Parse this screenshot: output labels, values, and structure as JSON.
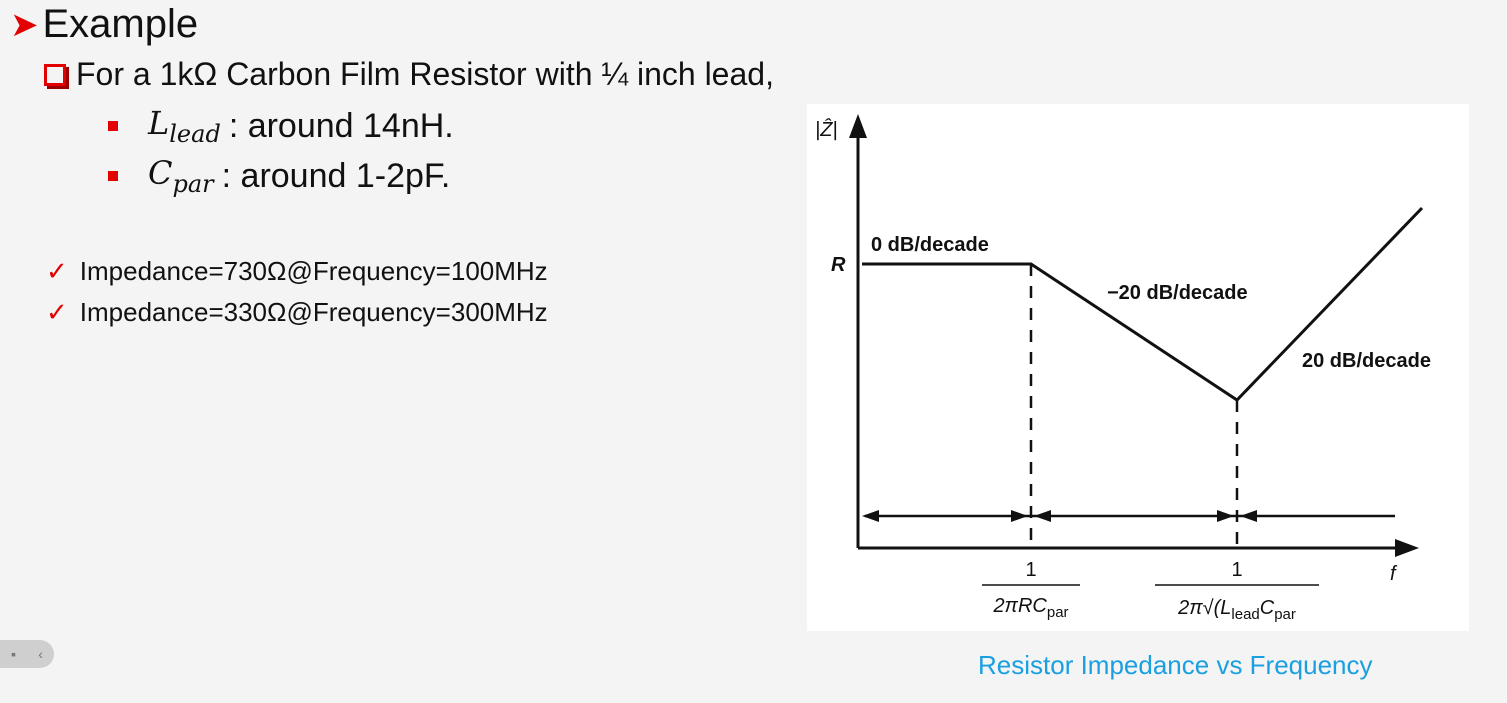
{
  "slide": {
    "heading": "Example",
    "subheading": "For a 1kΩ Carbon Film Resistor with ¼ inch lead,",
    "bullets": [
      {
        "symbol": "L",
        "sub": "lead",
        "text": ": around 14nH."
      },
      {
        "symbol": "C",
        "sub": "par",
        "text": ": around 1-2pF."
      }
    ],
    "checks": [
      "Impedance=730Ω@Frequency=100MHz",
      "Impedance=330Ω@Frequency=300MHz"
    ],
    "caption": "Resistor Impedance vs Frequency"
  },
  "chart_data": {
    "type": "line",
    "ylabel": "|Ẑ|",
    "xlabel": "f",
    "y_tick": "R",
    "segments": [
      {
        "label": "0 dB/decade"
      },
      {
        "label": "−20 dB/decade"
      },
      {
        "label": "20 dB/decade"
      }
    ],
    "breakpoints": [
      {
        "num": "1",
        "den": "2πRC",
        "den_sub": "par"
      },
      {
        "num": "1",
        "den": "2π√(L",
        "den_sub": "lead",
        "den2": "C",
        "den2_sub": "par"
      }
    ]
  },
  "colors": {
    "accent": "#e20000",
    "caption": "#1aa0e0"
  },
  "icons": {
    "heading": "arrowhead-icon",
    "sub": "checkbox-icon",
    "check": "checkmark-icon"
  }
}
